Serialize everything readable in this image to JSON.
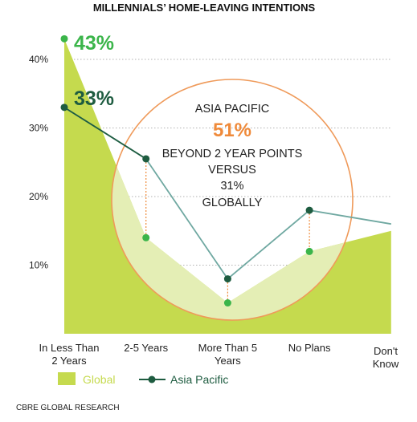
{
  "title": "MILLENNIALS’ HOME-LEAVING INTENTIONS",
  "source": "CBRE GLOBAL RESEARCH",
  "callout": {
    "region": "ASIA PACIFIC",
    "value": "51%",
    "line1": "BEYOND 2 YEAR POINTS",
    "line2": "VERSUS",
    "line3": "31%",
    "line4": "GLOBALLY"
  },
  "highlight_labels": {
    "global_first": "43%",
    "asia_first": "33%"
  },
  "legend": {
    "global": "Global",
    "asia": "Asia Pacific"
  },
  "colors": {
    "global_fill": "#c5da4e",
    "global_fill_light": "#e4eeb5",
    "global_point": "#3bb54a",
    "asia_line": "#6fa8a1",
    "asia_point": "#1e5c40",
    "callout_circle": "#ef9a5a",
    "callout_value": "#ef8a3a",
    "connector": "#ef8a3a",
    "grid": "#999999"
  },
  "chart_data": {
    "type": "area",
    "categories": [
      "In Less Than|2 Years",
      "2-5 Years",
      "More Than 5|Years",
      "No Plans",
      "Don't|Know"
    ],
    "ylim": [
      0,
      45
    ],
    "yticks": [
      10,
      20,
      30,
      40
    ],
    "ytick_labels": [
      "10%",
      "20%",
      "30%",
      "40%"
    ],
    "grid": true,
    "legend_position": "bottom-left",
    "series": [
      {
        "name": "Global",
        "type": "area",
        "values": [
          43,
          14,
          4.5,
          12,
          15
        ]
      },
      {
        "name": "Asia Pacific",
        "type": "line",
        "values": [
          33,
          25.5,
          8,
          18,
          16
        ]
      }
    ]
  }
}
